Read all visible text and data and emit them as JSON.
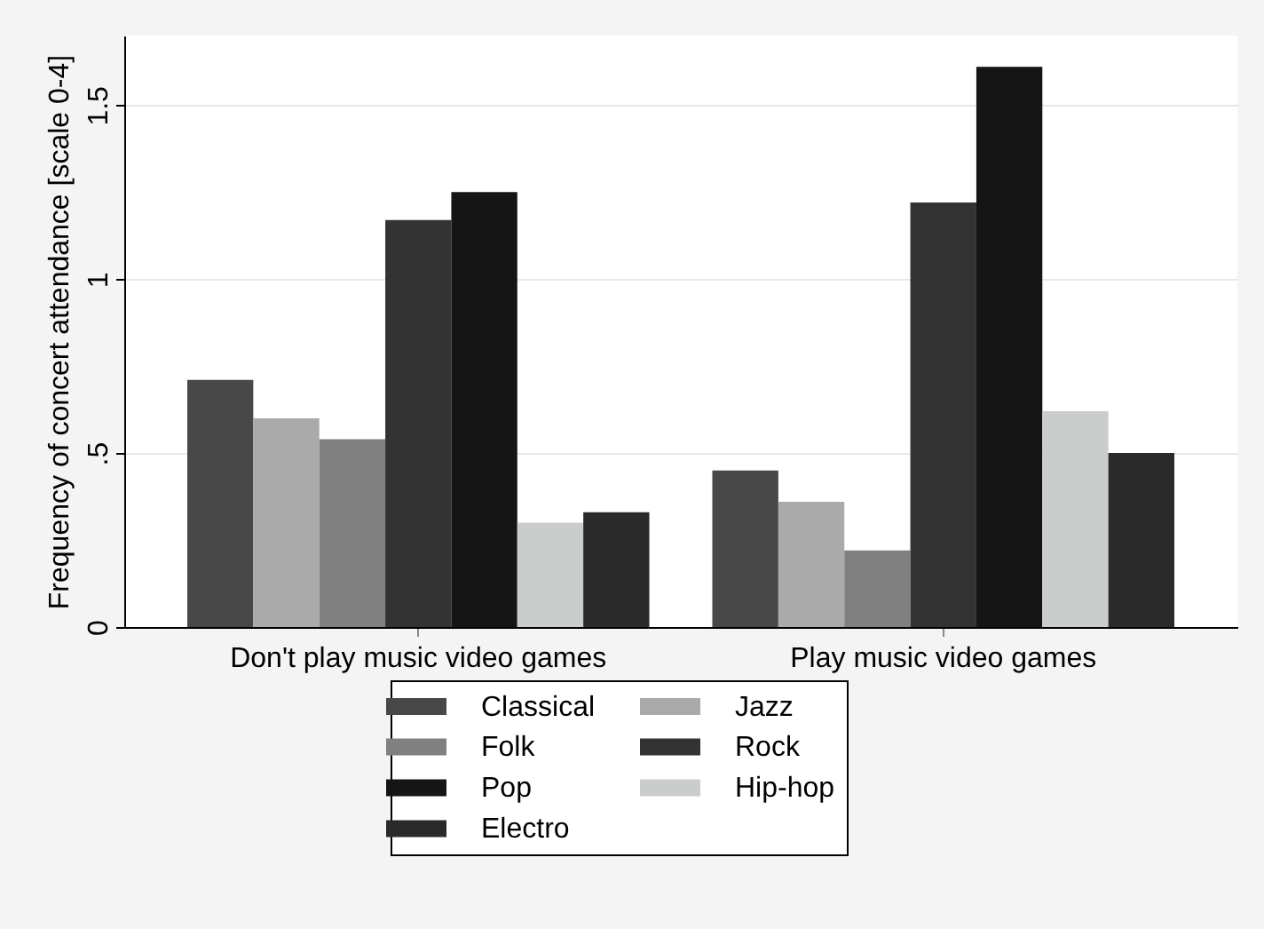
{
  "chart_data": {
    "type": "bar",
    "ylabel": "Frequency of concert attendance [scale 0-4]",
    "categories": [
      "Don't play music video games",
      "Play music video games"
    ],
    "series": [
      {
        "name": "Classical",
        "color": "#484848",
        "values": [
          0.71,
          0.45
        ]
      },
      {
        "name": "Jazz",
        "color": "#a9aaa9",
        "values": [
          0.6,
          0.36
        ]
      },
      {
        "name": "Folk",
        "color": "#808080",
        "values": [
          0.54,
          0.22
        ]
      },
      {
        "name": "Rock",
        "color": "#333333",
        "values": [
          1.17,
          1.22
        ]
      },
      {
        "name": "Pop",
        "color": "#151515",
        "values": [
          1.25,
          1.61
        ]
      },
      {
        "name": "Hip-hop",
        "color": "#cbcdcc",
        "values": [
          0.3,
          0.62
        ]
      },
      {
        "name": "Electro",
        "color": "#2a2a2a",
        "values": [
          0.33,
          0.5
        ]
      }
    ],
    "ylim": [
      0,
      1.7
    ],
    "yticks": [
      0,
      {
        "value": 0.5,
        "label": ".5"
      },
      1,
      1.5
    ],
    "grid": "y",
    "legend": "bottom"
  }
}
